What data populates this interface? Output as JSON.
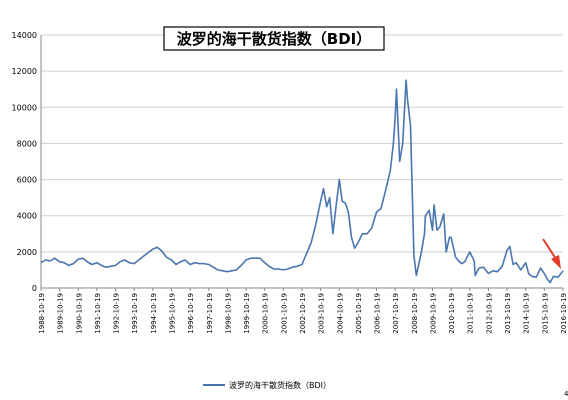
{
  "chart_data": {
    "type": "line",
    "title": "波罗的海干散货指数（BDI）",
    "xlabel": "",
    "ylabel": "",
    "ylim": [
      0,
      14000
    ],
    "yticks": [
      0,
      2000,
      4000,
      6000,
      8000,
      10000,
      12000,
      14000
    ],
    "xtick_labels": [
      "1988-10-19",
      "1989-10-19",
      "1990-10-19",
      "1991-10-19",
      "1992-10-19",
      "1993-10-19",
      "1994-10-19",
      "1995-10-19",
      "1996-10-19",
      "1997-10-19",
      "1998-10-19",
      "1999-10-19",
      "2000-10-19",
      "2001-10-19",
      "2002-10-19",
      "2003-10-19",
      "2004-10-19",
      "2005-10-19",
      "2006-10-19",
      "2007-10-19",
      "2008-10-19",
      "2009-10-19",
      "2010-10-19",
      "2011-10-19",
      "2012-10-19",
      "2013-10-19",
      "2014-10-19",
      "2015-10-19",
      "2016-10-19"
    ],
    "grid": "horizontal",
    "legend": "bottom",
    "line_color": "#4a76b0",
    "annotation": {
      "type": "arrow",
      "color": "#e53b2c",
      "points_to": "2016-02"
    },
    "series": [
      {
        "name": "波罗的海干散货指数（BDI）",
        "x": [
          "1988-10-19",
          "1989-01-15",
          "1989-04-15",
          "1989-07-15",
          "1989-10-19",
          "1990-01-15",
          "1990-04-15",
          "1990-07-15",
          "1990-10-19",
          "1991-01-15",
          "1991-04-15",
          "1991-07-15",
          "1991-10-19",
          "1992-01-15",
          "1992-04-15",
          "1992-07-15",
          "1992-10-19",
          "1993-01-15",
          "1993-04-15",
          "1993-07-15",
          "1993-10-19",
          "1994-01-15",
          "1994-04-15",
          "1994-07-15",
          "1994-10-19",
          "1995-01-15",
          "1995-04-15",
          "1995-07-15",
          "1995-10-19",
          "1996-01-15",
          "1996-04-15",
          "1996-07-15",
          "1996-10-19",
          "1997-01-15",
          "1997-04-15",
          "1997-07-15",
          "1997-10-19",
          "1998-01-15",
          "1998-04-15",
          "1998-07-15",
          "1998-10-19",
          "1999-01-15",
          "1999-04-15",
          "1999-07-15",
          "1999-10-19",
          "2000-01-15",
          "2000-04-15",
          "2000-07-15",
          "2000-10-19",
          "2001-01-15",
          "2001-04-15",
          "2001-07-15",
          "2001-10-19",
          "2002-01-15",
          "2002-04-15",
          "2002-07-15",
          "2002-10-19",
          "2003-01-15",
          "2003-04-15",
          "2003-07-15",
          "2003-10-19",
          "2003-12-15",
          "2004-02-15",
          "2004-04-15",
          "2004-06-15",
          "2004-08-15",
          "2004-10-19",
          "2004-12-15",
          "2005-02-15",
          "2005-04-15",
          "2005-06-15",
          "2005-08-15",
          "2005-10-19",
          "2006-01-15",
          "2006-04-15",
          "2006-07-15",
          "2006-10-19",
          "2007-01-15",
          "2007-04-15",
          "2007-07-15",
          "2007-09-15",
          "2007-10-19",
          "2007-11-13",
          "2007-12-15",
          "2008-01-15",
          "2008-03-15",
          "2008-05-20",
          "2008-06-15",
          "2008-08-15",
          "2008-10-19",
          "2008-12-05",
          "2009-01-15",
          "2009-03-15",
          "2009-05-15",
          "2009-06-03",
          "2009-08-15",
          "2009-10-19",
          "2009-11-19",
          "2010-01-15",
          "2010-03-15",
          "2010-05-26",
          "2010-07-15",
          "2010-09-15",
          "2010-10-19",
          "2011-01-15",
          "2011-03-15",
          "2011-05-15",
          "2011-07-15",
          "2011-10-19",
          "2012-01-15",
          "2012-02-03",
          "2012-04-15",
          "2012-07-15",
          "2012-10-19",
          "2013-01-15",
          "2013-04-15",
          "2013-07-15",
          "2013-10-19",
          "2013-12-12",
          "2014-02-15",
          "2014-04-15",
          "2014-07-15",
          "2014-10-19",
          "2014-12-15",
          "2015-02-15",
          "2015-05-15",
          "2015-08-05",
          "2015-10-19",
          "2015-12-15",
          "2016-02-10",
          "2016-04-15",
          "2016-07-15",
          "2016-10-19"
        ],
        "values": [
          1400,
          1550,
          1500,
          1650,
          1450,
          1400,
          1250,
          1350,
          1600,
          1650,
          1450,
          1300,
          1400,
          1250,
          1150,
          1200,
          1250,
          1450,
          1550,
          1400,
          1350,
          1550,
          1750,
          1950,
          2150,
          2250,
          2050,
          1700,
          1550,
          1300,
          1450,
          1550,
          1300,
          1400,
          1350,
          1350,
          1300,
          1150,
          1000,
          950,
          900,
          950,
          1000,
          1250,
          1550,
          1650,
          1650,
          1650,
          1400,
          1200,
          1050,
          1050,
          1000,
          1050,
          1150,
          1200,
          1300,
          1900,
          2500,
          3500,
          4800,
          5500,
          4500,
          5000,
          3000,
          4500,
          6000,
          4800,
          4700,
          4200,
          2800,
          2200,
          2500,
          3000,
          3000,
          3300,
          4200,
          4400,
          5400,
          6500,
          8000,
          9500,
          11000,
          9000,
          7000,
          8000,
          11500,
          10500,
          9000,
          1800,
          700,
          1200,
          2000,
          3000,
          4000,
          4300,
          3200,
          4600,
          3200,
          3400,
          4100,
          2000,
          2800,
          2800,
          1700,
          1500,
          1350,
          1450,
          2000,
          1500,
          700,
          1100,
          1150,
          800,
          950,
          900,
          1200,
          2100,
          2300,
          1300,
          1400,
          1000,
          1400,
          800,
          650,
          600,
          1100,
          800,
          500,
          300,
          650,
          600,
          950
        ]
      }
    ]
  },
  "figure": {
    "right_edge_digit": "4"
  }
}
